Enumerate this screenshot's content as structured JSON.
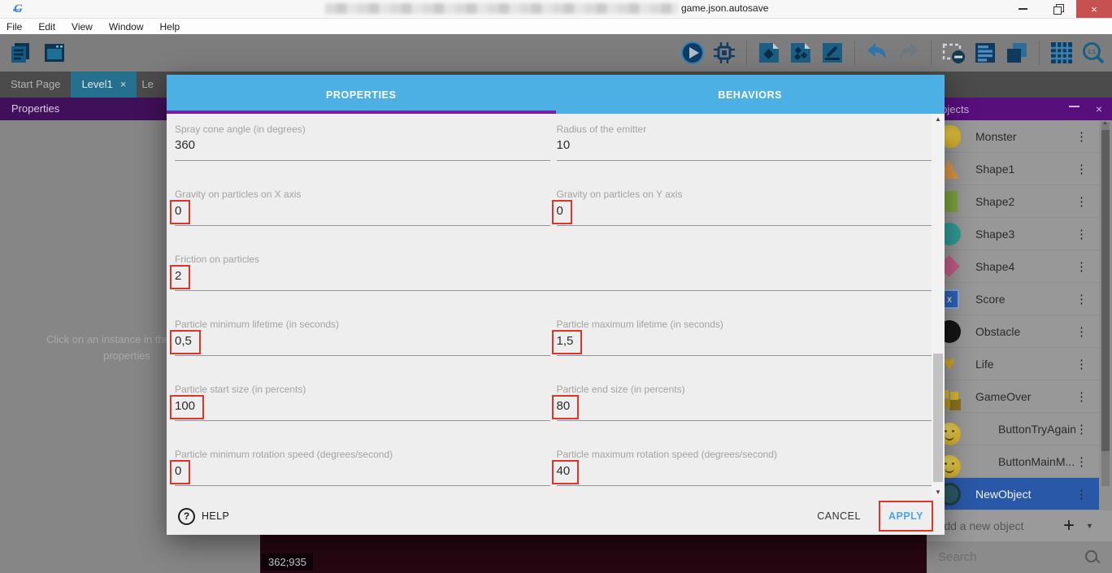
{
  "titlebar": {
    "title": "game.json.autosave"
  },
  "menu": [
    "File",
    "Edit",
    "View",
    "Window",
    "Help"
  ],
  "toolbar": {
    "left_icons": [
      "project-manager-icon",
      "start-page-icon"
    ],
    "right_groups": [
      [
        "play-icon",
        "debug-icon"
      ],
      [
        "add-object-icon",
        "objects-groups-icon",
        "edit-scene-icon"
      ],
      [
        "undo-icon",
        "redo-icon"
      ],
      [
        "delete-selection-icon",
        "instances-list-icon",
        "layers-icon"
      ],
      [
        "grid-icon",
        "zoom-1-1-icon"
      ]
    ]
  },
  "editor_tabs": [
    {
      "label": "Start Page",
      "active": false,
      "closable": false,
      "clipped": false
    },
    {
      "label": "Level1",
      "active": true,
      "closable": true,
      "clipped": false
    },
    {
      "label": "Le",
      "active": false,
      "closable": false,
      "clipped": true
    }
  ],
  "left_panel": {
    "title": "Properties",
    "message_line1": "Click on an instance in the sce",
    "message_line2": "properties"
  },
  "dialog": {
    "tabs": [
      {
        "label": "PROPERTIES",
        "active": true
      },
      {
        "label": "BEHAVIORS",
        "active": false
      }
    ],
    "rows": [
      {
        "fields": [
          {
            "label": "Spray cone angle (in degrees)",
            "value": "360",
            "highlight": false
          },
          {
            "label": "Radius of the emitter",
            "value": "10",
            "highlight": false
          }
        ]
      },
      {
        "fields": [
          {
            "label": "Gravity on particles on X axis",
            "value": "0",
            "highlight": true
          },
          {
            "label": "Gravity on particles on Y axis",
            "value": "0",
            "highlight": true
          }
        ]
      },
      {
        "fields": [
          {
            "label": "Friction on particles",
            "value": "2",
            "highlight": true
          }
        ]
      },
      {
        "fields": [
          {
            "label": "Particle minimum lifetime (in seconds)",
            "value": "0,5",
            "highlight": true
          },
          {
            "label": "Particle maximum lifetime (in seconds)",
            "value": "1,5",
            "highlight": true
          }
        ]
      },
      {
        "fields": [
          {
            "label": "Particle start size (in percents)",
            "value": "100",
            "highlight": true
          },
          {
            "label": "Particle end size (in percents)",
            "value": "80",
            "highlight": true
          }
        ]
      },
      {
        "fields": [
          {
            "label": "Particle minimum rotation speed (degrees/second)",
            "value": "0",
            "highlight": true
          },
          {
            "label": "Particle maximum rotation speed (degrees/second)",
            "value": "40",
            "highlight": true
          }
        ]
      }
    ],
    "footer": {
      "help": "HELP",
      "cancel": "CANCEL",
      "apply": "APPLY",
      "apply_highlighted": true
    }
  },
  "objects_panel": {
    "title": "Objects",
    "items": [
      {
        "name": "Monster",
        "icon": "monster-icon",
        "selected": false
      },
      {
        "name": "Shape1",
        "icon": "triangle-icon",
        "selected": false
      },
      {
        "name": "Shape2",
        "icon": "rectangle-icon",
        "selected": false
      },
      {
        "name": "Shape3",
        "icon": "circle-icon",
        "selected": false
      },
      {
        "name": "Shape4",
        "icon": "diamond-icon",
        "selected": false
      },
      {
        "name": "Score",
        "icon": "text-icon",
        "selected": false
      },
      {
        "name": "Obstacle",
        "icon": "black-circle-icon",
        "selected": false
      },
      {
        "name": "Life",
        "icon": "heart-icon",
        "selected": false
      },
      {
        "name": "GameOver",
        "icon": "pixel-text-icon",
        "selected": false
      },
      {
        "name": "ButtonTryAgain",
        "icon": "smiley-icon",
        "selected": false
      },
      {
        "name": "ButtonMainM...",
        "icon": "smiley-icon",
        "selected": false
      },
      {
        "name": "NewObject",
        "icon": "dark-circle-icon",
        "selected": true
      }
    ],
    "add_placeholder": "Add a new object",
    "search_placeholder": "Search"
  },
  "canvas": {
    "coordinates": "362;935"
  },
  "colors": {
    "dialog_tab_blue": "#4cb0e5",
    "tab_underline_purple": "#7b1fa2",
    "annotation_red": "#e0342b",
    "apply_blue": "#4da6e0",
    "selected_row_blue": "#2a58a8",
    "panel_purple": "#570f7c",
    "close_button_red": "#c75050"
  }
}
